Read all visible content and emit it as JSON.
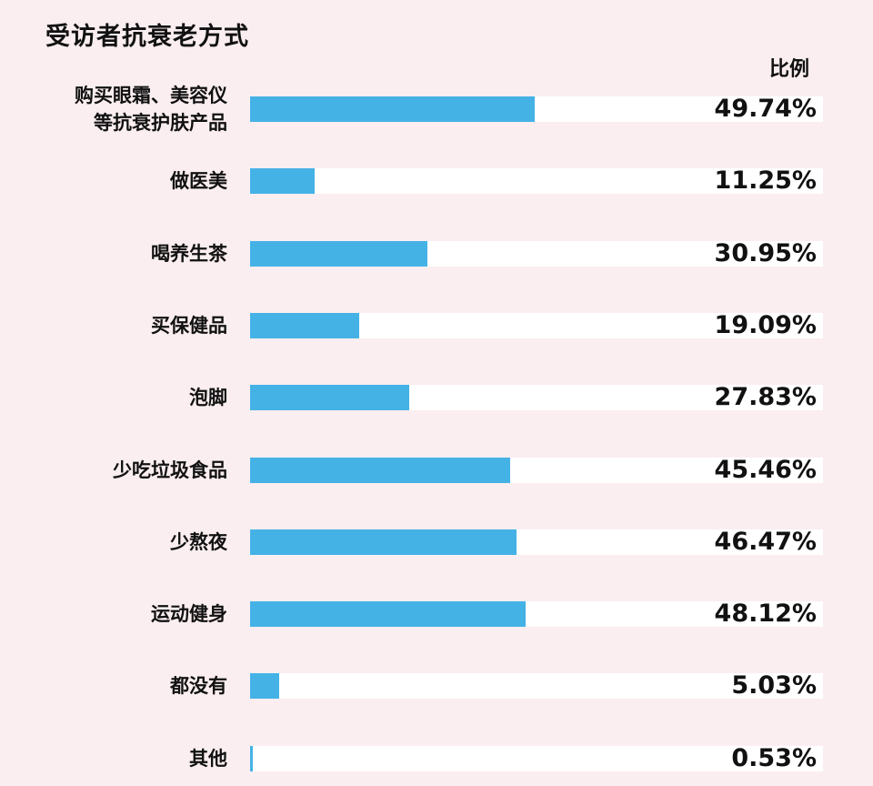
{
  "chart_data": {
    "type": "bar",
    "orientation": "horizontal",
    "title": "受访者抗衰老方式",
    "value_header": "比例",
    "xlabel": "",
    "ylabel": "",
    "xlim": [
      0,
      100
    ],
    "grid": false,
    "legend": null,
    "bar_color": "#45b2e6",
    "track_color": "#ffffff",
    "background_color": "#fbeef0",
    "categories": [
      "购买眼霜、美容仪\n等抗衰护肤产品",
      "做医美",
      "喝养生茶",
      "买保健品",
      "泡脚",
      "少吃垃圾食品",
      "少熬夜",
      "运动健身",
      "都没有",
      "其他"
    ],
    "values": [
      49.74,
      11.25,
      30.95,
      19.09,
      27.83,
      45.46,
      46.47,
      48.12,
      5.03,
      0.53
    ],
    "value_labels": [
      "49.74%",
      "11.25%",
      "30.95%",
      "19.09%",
      "27.83%",
      "45.46%",
      "46.47%",
      "48.12%",
      "5.03%",
      "0.53%"
    ]
  }
}
